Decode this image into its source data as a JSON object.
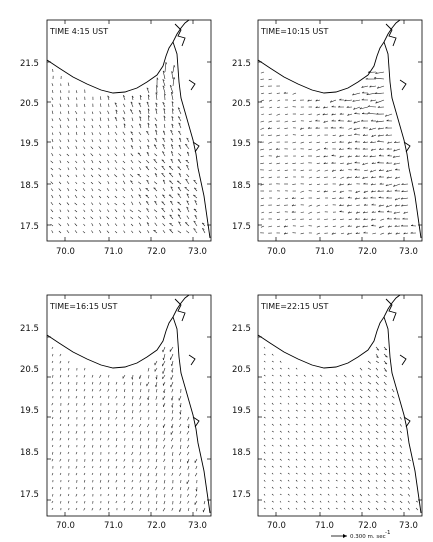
{
  "figure": {
    "panels": [
      {
        "id": "p1",
        "title": "TIME  4:15  UST"
      },
      {
        "id": "p2",
        "title": "TIME=10:15  UST"
      },
      {
        "id": "p3",
        "title": "TIME=16:15  UST"
      },
      {
        "id": "p4",
        "title": "TIME=22:15  UST"
      }
    ],
    "x_ticks": [
      "70.0",
      "71.0",
      "72.0",
      "73.0"
    ],
    "y_ticks": [
      "21.5",
      "20.5",
      "19.5",
      "18.5",
      "17.5"
    ],
    "scale_label": "0.300 m. sec",
    "scale_exponent": "-1"
  }
}
